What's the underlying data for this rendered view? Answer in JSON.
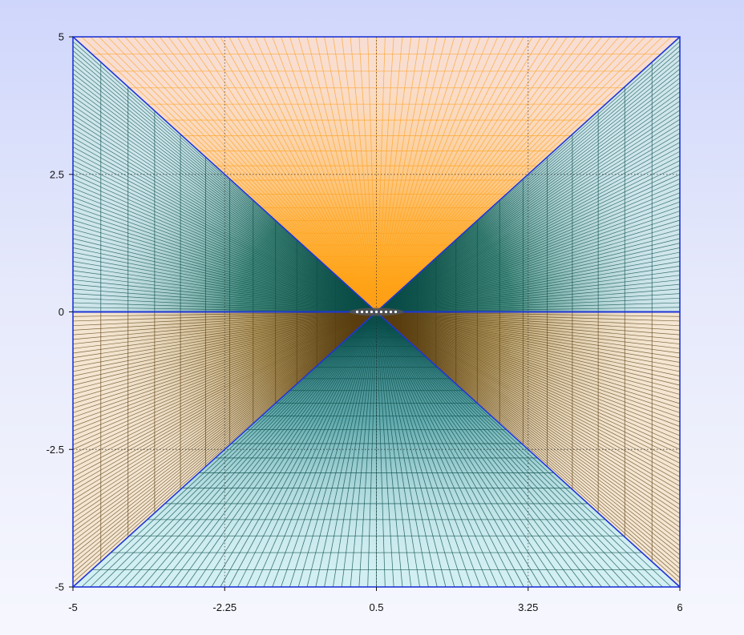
{
  "chart_data": {
    "type": "other",
    "description": "",
    "title": "",
    "xlabel": "",
    "ylabel": "",
    "xlim": [
      -5,
      6
    ],
    "ylim": [
      -5,
      5
    ],
    "x_ticks": [
      "-5",
      "-2.25",
      "0.5",
      "3.25",
      "6"
    ],
    "y_ticks": [
      "5",
      "2.5",
      "0",
      "-2.5",
      "-5"
    ],
    "x_tick_values": [
      -5,
      -2.25,
      0.5,
      3.25,
      6
    ],
    "y_tick_values": [
      5,
      2.5,
      0,
      -2.5,
      -5
    ],
    "center": [
      0.5,
      0
    ],
    "grid": "dotted at ticks",
    "colors": {
      "frame": "#1f35d6",
      "top_region_fill": "#f8ddd2",
      "top_region_lines": "#ff9f1a",
      "side_region_fill": "#cfe6ec",
      "side_region_lines": "#0b4e4a",
      "bottom_region_fill": "#d2eff3",
      "bottom_region_lines": "#0b4e4a",
      "lower_side_fill": "#f4e6d2",
      "lower_side_lines": "#5b3d10"
    }
  }
}
